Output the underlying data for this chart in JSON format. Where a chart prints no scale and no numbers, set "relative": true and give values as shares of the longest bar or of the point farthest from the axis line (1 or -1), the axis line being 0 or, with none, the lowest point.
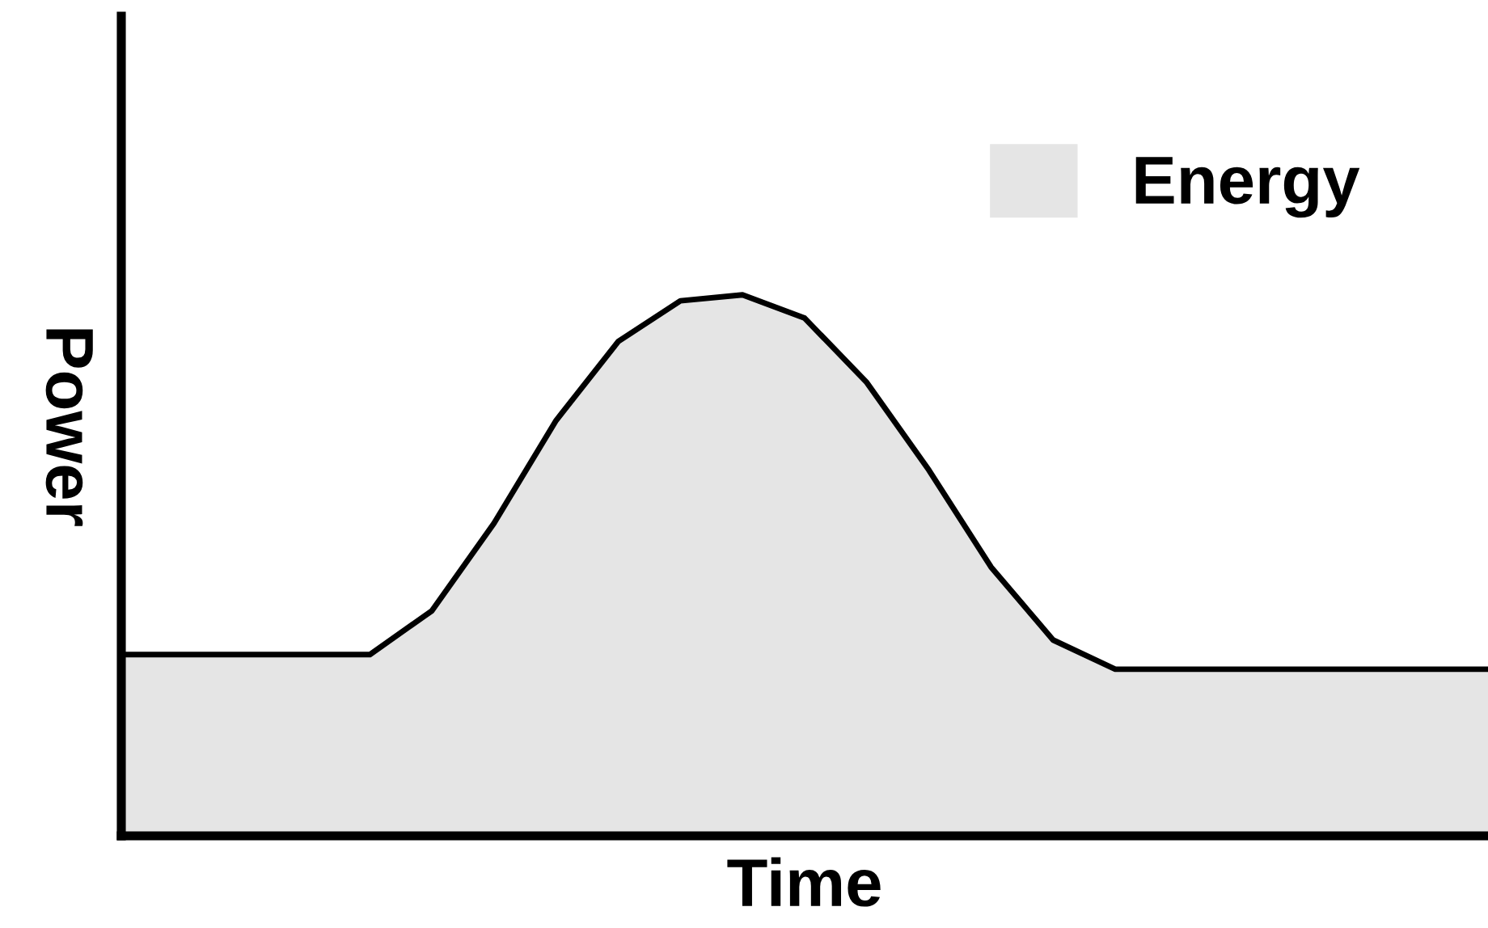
{
  "chart_data": {
    "type": "area",
    "relative": true,
    "xlabel": "Time",
    "ylabel": "Power",
    "legend": "top right",
    "grid": false,
    "categories": [
      null,
      null,
      null,
      null,
      null,
      null,
      null,
      null,
      null,
      null,
      null,
      null,
      null,
      null,
      null,
      null,
      null,
      null,
      null,
      null,
      null,
      null,
      null
    ],
    "series": [
      {
        "name": "Energy",
        "color": "#e5e5e5",
        "values": [
          0.335,
          0.335,
          0.335,
          0.335,
          0.335,
          0.416,
          0.578,
          0.768,
          0.914,
          0.989,
          1,
          0.957,
          0.838,
          0.676,
          0.497,
          0.362,
          0.308,
          0.308,
          0.308,
          0.308,
          0.308,
          0.308,
          0.308
        ]
      }
    ]
  }
}
